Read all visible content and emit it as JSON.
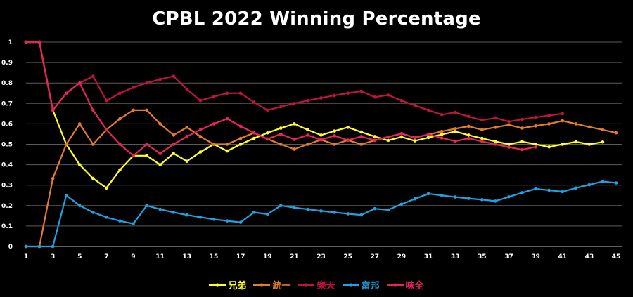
{
  "chart_data": {
    "type": "line",
    "title": "CPBL 2022 Winning Percentage",
    "xlabel": "",
    "ylabel": "",
    "xlim": [
      1,
      45
    ],
    "ylim": [
      0,
      1
    ],
    "x_ticks": [
      1,
      3,
      5,
      7,
      9,
      11,
      13,
      15,
      17,
      19,
      21,
      23,
      25,
      27,
      29,
      31,
      33,
      35,
      37,
      39,
      41,
      43,
      45
    ],
    "y_ticks": [
      0,
      0.1,
      0.2,
      0.3,
      0.4,
      0.5,
      0.6,
      0.7,
      0.8,
      0.9,
      1
    ],
    "grid": "horizontal",
    "legend_position": "bottom",
    "series": [
      {
        "name": "兄弟",
        "color": "#ffff22",
        "values": [
          1.0,
          1.0,
          0.667,
          0.5,
          0.4,
          0.333,
          0.286,
          0.375,
          0.444,
          0.444,
          0.4,
          0.455,
          0.417,
          0.462,
          0.5,
          0.467,
          0.5,
          0.529,
          0.556,
          0.579,
          0.6,
          0.571,
          0.545,
          0.565,
          0.583,
          0.56,
          0.538,
          0.519,
          0.536,
          0.517,
          0.533,
          0.548,
          0.563,
          0.545,
          0.529,
          0.514,
          0.5,
          0.513,
          0.5,
          0.487,
          0.5,
          0.512,
          0.5,
          0.511
        ]
      },
      {
        "name": "統一",
        "color": "#e57b2b",
        "values": [
          0.0,
          0.0,
          0.333,
          0.5,
          0.6,
          0.5,
          0.571,
          0.625,
          0.667,
          0.667,
          0.6,
          0.545,
          0.583,
          0.538,
          0.5,
          0.5,
          0.529,
          0.556,
          0.526,
          0.5,
          0.476,
          0.5,
          0.522,
          0.5,
          0.52,
          0.5,
          0.519,
          0.536,
          0.552,
          0.533,
          0.548,
          0.563,
          0.576,
          0.588,
          0.571,
          0.583,
          0.595,
          0.579,
          0.59,
          0.6,
          0.615,
          0.6,
          0.585,
          0.571,
          0.556
        ]
      },
      {
        "name": "樂天",
        "color": "#c0143c",
        "values": [
          1.0,
          1.0,
          0.667,
          0.75,
          0.8,
          0.833,
          0.714,
          0.75,
          0.778,
          0.8,
          0.818,
          0.833,
          0.769,
          0.714,
          0.733,
          0.75,
          0.75,
          0.706,
          0.667,
          0.684,
          0.7,
          0.714,
          0.727,
          0.739,
          0.75,
          0.76,
          0.731,
          0.741,
          0.714,
          0.69,
          0.667,
          0.645,
          0.656,
          0.636,
          0.618,
          0.629,
          0.611,
          0.622,
          0.632,
          0.641,
          0.65
        ]
      },
      {
        "name": "富邦",
        "color": "#1fa2e0",
        "values": [
          0.0,
          0.0,
          0.0,
          0.25,
          0.2,
          0.167,
          0.143,
          0.125,
          0.111,
          0.2,
          0.182,
          0.167,
          0.154,
          0.143,
          0.133,
          0.125,
          0.118,
          0.167,
          0.158,
          0.2,
          0.19,
          0.182,
          0.174,
          0.167,
          0.16,
          0.154,
          0.185,
          0.179,
          0.207,
          0.233,
          0.258,
          0.25,
          0.242,
          0.235,
          0.229,
          0.222,
          0.243,
          0.263,
          0.282,
          0.275,
          0.268,
          0.286,
          0.302,
          0.318,
          0.311
        ]
      },
      {
        "name": "味全",
        "color": "#e8255a",
        "values": [
          1.0,
          1.0,
          0.667,
          0.75,
          0.8,
          0.667,
          0.571,
          0.5,
          0.444,
          0.5,
          0.455,
          0.5,
          0.538,
          0.571,
          0.6,
          0.625,
          0.588,
          0.556,
          0.526,
          0.55,
          0.524,
          0.545,
          0.522,
          0.542,
          0.52,
          0.538,
          0.519,
          0.536,
          0.552,
          0.533,
          0.548,
          0.531,
          0.515,
          0.529,
          0.514,
          0.5,
          0.486,
          0.474,
          0.487
        ]
      }
    ]
  }
}
